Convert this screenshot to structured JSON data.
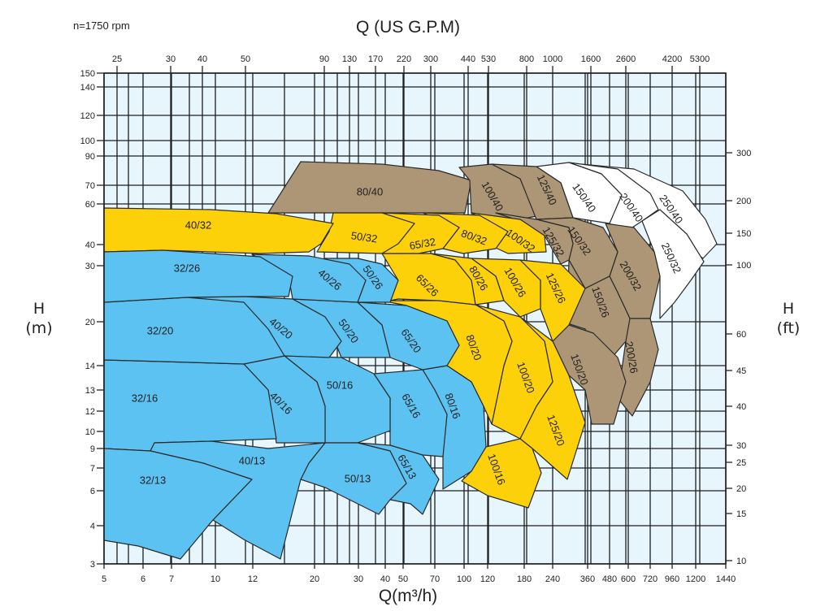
{
  "chart_data": {
    "type": "area",
    "title": "",
    "speed_note": "n=1750 rpm",
    "xlabel": "Q(m³/h)",
    "x2label": "Q (US G.P.M)",
    "ylabel": "H",
    "ylabel_unit": "(m)",
    "y2label": "H",
    "y2label_unit": "(ft)",
    "x_scale": "log",
    "y_scale": "log",
    "xlim": [
      5,
      1440
    ],
    "ylim": [
      3,
      150
    ],
    "grid": true,
    "x_ticks": [
      "5",
      "6",
      "7",
      "10",
      "12",
      "20",
      "30",
      "40",
      "50",
      "70",
      "100",
      "120",
      "180",
      "240",
      "360",
      "480",
      "600",
      "720",
      "960",
      "1200",
      "1440"
    ],
    "x2_ticks": [
      "25",
      "30",
      "40",
      "50",
      "90",
      "130",
      "170",
      "220",
      "300",
      "440",
      "530",
      "800",
      "1000",
      "1600",
      "2600",
      "4200",
      "5300"
    ],
    "y_ticks": [
      "150",
      "140",
      "120",
      "100",
      "90",
      "70",
      "60",
      "40",
      "30",
      "20",
      "14",
      "13",
      "12",
      "10",
      "9",
      "7",
      "6",
      "4",
      "3"
    ],
    "y2_ticks": [
      "300",
      "200",
      "150",
      "100",
      "60",
      "45",
      "40",
      "30",
      "25",
      "20",
      "15",
      "10"
    ],
    "colors": {
      "blue": "#5cc2f2",
      "yellow": "#fdd10a",
      "brown": "#ad9676",
      "white": "#ffffff",
      "background": "#e6f6fc",
      "grid": "#1e1e1e"
    },
    "series": [
      {
        "name": "250/40",
        "color": "white"
      },
      {
        "name": "200/40",
        "color": "white"
      },
      {
        "name": "150/40",
        "color": "white"
      },
      {
        "name": "250/32",
        "color": "white"
      },
      {
        "name": "80/40",
        "color": "brown"
      },
      {
        "name": "100/40",
        "color": "brown"
      },
      {
        "name": "125/40",
        "color": "brown"
      },
      {
        "name": "200/32",
        "color": "brown"
      },
      {
        "name": "200/26",
        "color": "brown"
      },
      {
        "name": "150/32",
        "color": "brown"
      },
      {
        "name": "125/32",
        "color": "brown"
      },
      {
        "name": "150/26",
        "color": "brown"
      },
      {
        "name": "150/20",
        "color": "brown"
      },
      {
        "name": "125/20",
        "color": "yellow"
      },
      {
        "name": "100/16",
        "color": "yellow"
      },
      {
        "name": "100/20",
        "color": "yellow"
      },
      {
        "name": "80/20",
        "color": "yellow"
      },
      {
        "name": "125/26",
        "color": "yellow"
      },
      {
        "name": "100/26",
        "color": "yellow"
      },
      {
        "name": "80/26",
        "color": "yellow"
      },
      {
        "name": "65/26",
        "color": "yellow"
      },
      {
        "name": "100/32",
        "color": "yellow"
      },
      {
        "name": "80/32",
        "color": "yellow"
      },
      {
        "name": "65/32",
        "color": "yellow"
      },
      {
        "name": "50/32",
        "color": "yellow"
      },
      {
        "name": "40/32",
        "color": "yellow"
      },
      {
        "name": "80/16",
        "color": "blue"
      },
      {
        "name": "65/16",
        "color": "blue"
      },
      {
        "name": "50/16",
        "color": "blue"
      },
      {
        "name": "40/16",
        "color": "blue"
      },
      {
        "name": "32/16",
        "color": "blue"
      },
      {
        "name": "65/20",
        "color": "blue"
      },
      {
        "name": "50/20",
        "color": "blue"
      },
      {
        "name": "40/20",
        "color": "blue"
      },
      {
        "name": "32/20",
        "color": "blue"
      },
      {
        "name": "50/26",
        "color": "blue"
      },
      {
        "name": "40/26",
        "color": "blue"
      },
      {
        "name": "32/26",
        "color": "blue"
      },
      {
        "name": "65/13",
        "color": "blue"
      },
      {
        "name": "50/13",
        "color": "blue"
      },
      {
        "name": "40/13",
        "color": "blue"
      },
      {
        "name": "32/13",
        "color": "blue"
      }
    ]
  }
}
